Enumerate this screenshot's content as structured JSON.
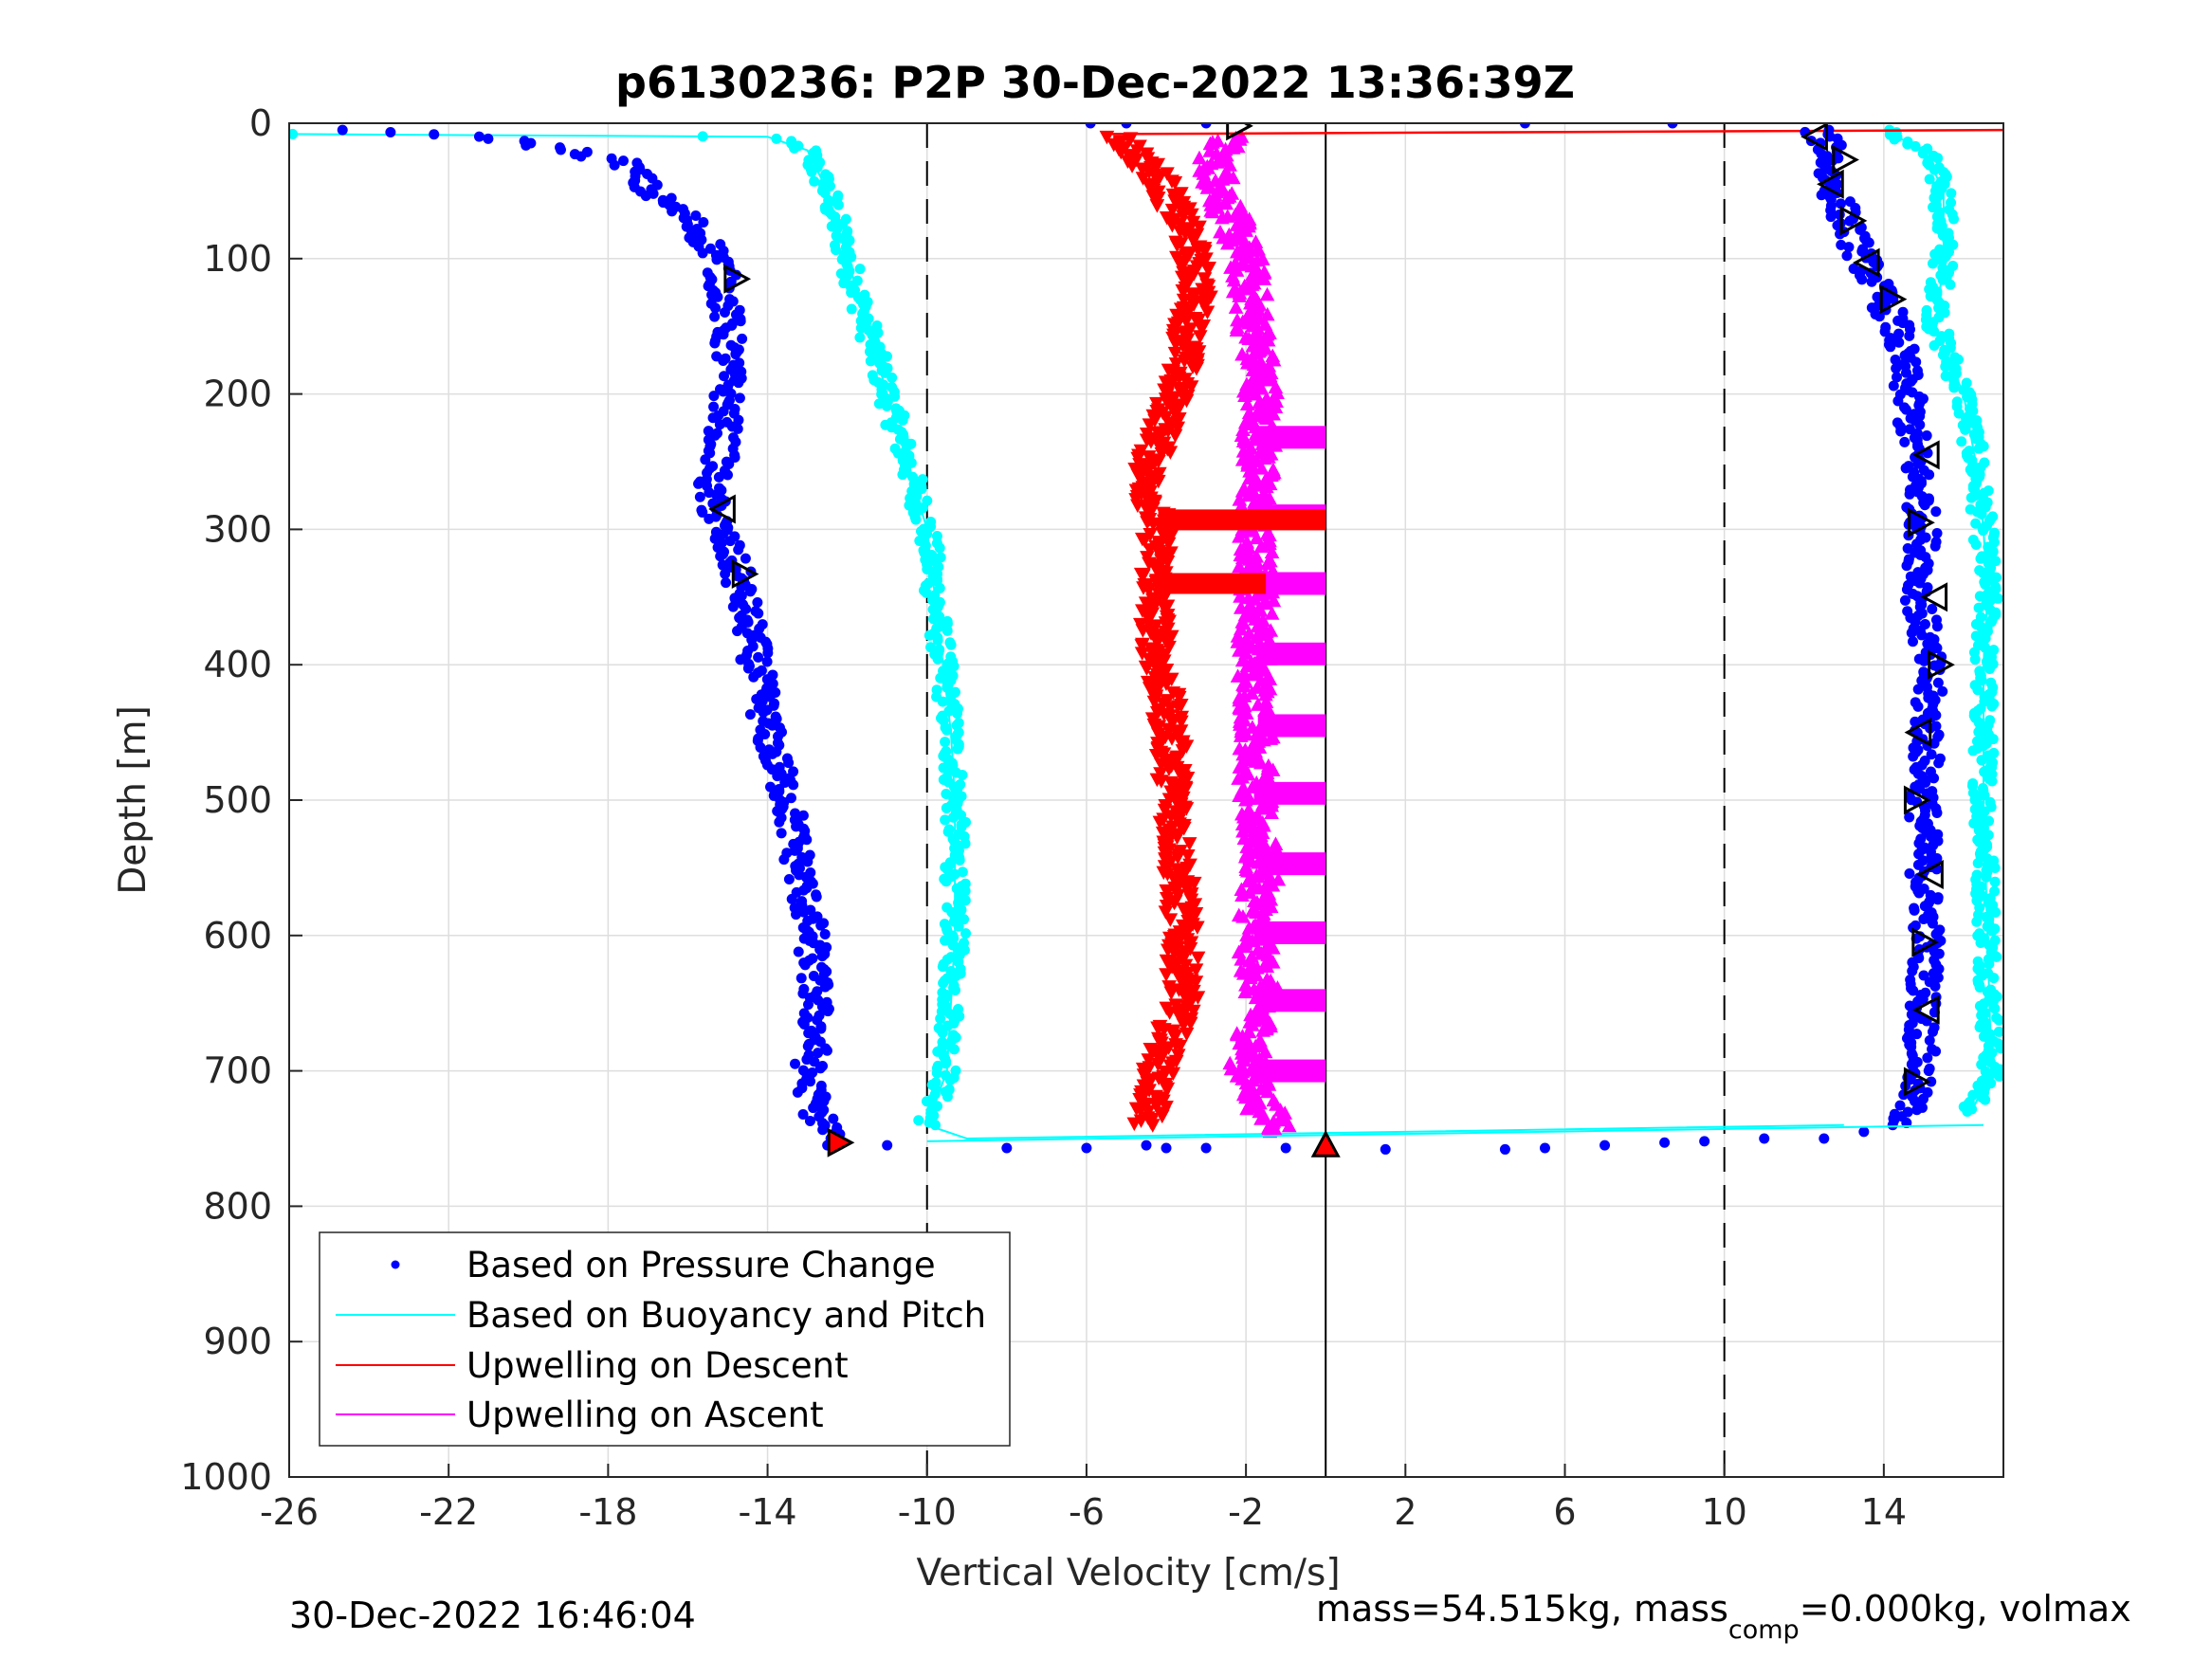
{
  "chart_data": {
    "type": "scatter",
    "title": "p6130236: P2P 30-Dec-2022 13:36:39Z",
    "xlabel": "Vertical Velocity [cm/s]",
    "ylabel": "Depth [m]",
    "xlim": [
      -26,
      17
    ],
    "ylim": [
      0,
      1000
    ],
    "y_reversed": true,
    "grid": true,
    "x_ticks": [
      -26,
      -22,
      -18,
      -14,
      -10,
      -6,
      -2,
      2,
      6,
      10,
      14
    ],
    "x_tick_labels": [
      "-26",
      "-22",
      "-18",
      "-14",
      "-10",
      "-6",
      "-2",
      "2",
      "6",
      "10",
      "14"
    ],
    "y_ticks": [
      0,
      100,
      200,
      300,
      400,
      500,
      600,
      700,
      800,
      900,
      1000
    ],
    "y_tick_labels": [
      "0",
      "100",
      "200",
      "300",
      "400",
      "500",
      "600",
      "700",
      "800",
      "900",
      "1000"
    ],
    "reference_lines": [
      {
        "x": -10,
        "style": "dashed"
      },
      {
        "x": 10,
        "style": "dashed"
      },
      {
        "x": 0,
        "style": "solid"
      }
    ],
    "legend_placement": "bottom-left",
    "legend": [
      {
        "label": "Based on Pressure Change",
        "color": "#0000ff",
        "marker": "dot"
      },
      {
        "label": "Based on Buoyancy and Pitch",
        "color": "#00ffff",
        "marker": "line"
      },
      {
        "label": "Upwelling on Descent",
        "color": "#ff0000",
        "marker": "line"
      },
      {
        "label": "Upwelling on Ascent",
        "color": "#ff00ff",
        "marker": "line"
      }
    ],
    "series": [
      {
        "name": "Based on Pressure Change",
        "color": "#0000ff",
        "marker": "dot",
        "profiles": [
          {
            "x": [
              -25,
              -21,
              -19,
              -17.5,
              -17,
              -16,
              -15.2,
              -15,
              -15,
              -15.2,
              -15.5,
              -15.2,
              -14.8,
              -14.4,
              -14,
              -13.5,
              -13.2,
              -12.9,
              -12.8,
              -12.8,
              -13,
              -12.8,
              -12.3
            ],
            "y": [
              5,
              10,
              20,
              30,
              50,
              70,
              100,
              150,
              200,
              250,
              270,
              300,
              330,
              380,
              450,
              500,
              550,
              600,
              650,
              680,
              700,
              730,
              750
            ]
          },
          {
            "x": [
              12.3,
              12.7,
              12.6,
              12.9,
              13.3,
              13.8,
              14.3,
              14.6,
              14.8,
              15,
              14.9,
              15.1,
              15.1,
              15,
              15,
              15.1,
              15,
              14.9,
              14.8,
              14.6,
              14.5
            ],
            "y": [
              5,
              20,
              40,
              60,
              90,
              120,
              150,
              200,
              250,
              300,
              350,
              400,
              450,
              500,
              550,
              600,
              650,
              700,
              710,
              730,
              740
            ]
          }
        ],
        "scattered_points": {
          "x": [
            -12.5,
            -11,
            -8,
            -6,
            -4.5,
            -4,
            -3,
            -1,
            1.5,
            4.5,
            5.5,
            7,
            8.5,
            9.5,
            11,
            12.5,
            13.5,
            -5.9,
            -5,
            -3,
            5,
            8.7
          ],
          "y": [
            755,
            755,
            757,
            757,
            755,
            757,
            757,
            757,
            758,
            758,
            757,
            755,
            753,
            752,
            750,
            750,
            745,
            0,
            0,
            0,
            0,
            0
          ]
        }
      },
      {
        "name": "Based on Buoyancy and Pitch",
        "color": "#00ffff",
        "marker": "dot+line",
        "profiles": [
          {
            "x": [
              -26,
              -14,
              -13,
              -12.5,
              -12,
              -11.5,
              -11,
              -10.5,
              -10,
              -9.8,
              -9.6,
              -9.4,
              -9.3,
              -9.3,
              -9.5,
              -10,
              -9,
              13
            ],
            "y": [
              8,
              10,
              20,
              50,
              100,
              150,
              200,
              250,
              300,
              350,
              400,
              450,
              500,
              600,
              700,
              740,
              750,
              740
            ]
          },
          {
            "x": [
              14,
              15,
              15.5,
              15.5,
              15.3,
              16,
              16.3,
              16.5,
              16.6,
              16.5,
              16.5,
              16.5,
              16.6,
              16.7,
              16.2
            ],
            "y": [
              5,
              20,
              50,
              100,
              150,
              200,
              250,
              300,
              350,
              400,
              450,
              500,
              600,
              700,
              730
            ]
          }
        ]
      },
      {
        "name": "Upwelling on Descent",
        "color": "#ff0000",
        "marker": "triangle-down",
        "x": [
          -5.2,
          -4.2,
          -3.5,
          -3.2,
          -3.6,
          -4,
          -4.5,
          -4.2,
          -4.3,
          -4.2,
          -3.9,
          -3.8,
          -3.7,
          -3.6,
          -3.6,
          -4.2,
          -4.5
        ],
        "y": [
          10,
          40,
          80,
          120,
          180,
          220,
          260,
          300,
          350,
          400,
          450,
          500,
          550,
          600,
          650,
          700,
          740
        ],
        "bands": [
          {
            "y": 293,
            "x_from": -4.2,
            "x_to": 0
          },
          {
            "y": 340,
            "x_from": -4.2,
            "x_to": -1.5
          }
        ]
      },
      {
        "name": "Upwelling on Ascent",
        "color": "#ff00ff",
        "marker": "triangle-up",
        "x": [
          -2.5,
          -2.8,
          -2.5,
          -2,
          -1.8,
          -1.6,
          -1.7,
          -1.8,
          -1.7,
          -1.8,
          -1.7,
          -1.8,
          -1.6,
          -1.8,
          -1.6,
          -2,
          -1.5,
          -1
        ],
        "y": [
          10,
          30,
          60,
          100,
          150,
          200,
          250,
          300,
          350,
          400,
          450,
          500,
          550,
          600,
          650,
          700,
          730,
          745
        ],
        "bands": [
          {
            "y": 232,
            "x_from": -1.7,
            "x_to": 0
          },
          {
            "y": 290,
            "x_from": -1.8,
            "x_to": 0
          },
          {
            "y": 340,
            "x_from": -1.8,
            "x_to": 0
          },
          {
            "y": 392,
            "x_from": -1.7,
            "x_to": 0
          },
          {
            "y": 445,
            "x_from": -1.7,
            "x_to": 0
          },
          {
            "y": 495,
            "x_from": -1.8,
            "x_to": 0
          },
          {
            "y": 547,
            "x_from": -1.7,
            "x_to": 0
          },
          {
            "y": 598,
            "x_from": -1.8,
            "x_to": 0
          },
          {
            "y": 648,
            "x_from": -1.7,
            "x_to": 0
          },
          {
            "y": 700,
            "x_from": -1.8,
            "x_to": 0
          }
        ]
      }
    ],
    "top_red_line": {
      "x": [
        -5.5,
        17
      ],
      "y": [
        8,
        5
      ]
    },
    "markers": [
      {
        "shape": "triangle-right",
        "x": -2.2,
        "y": 2,
        "fill": "none"
      },
      {
        "shape": "triangle-right",
        "x": -14.8,
        "y": 115,
        "fill": "none"
      },
      {
        "shape": "triangle-left",
        "x": -15.1,
        "y": 285,
        "fill": "none"
      },
      {
        "shape": "triangle-right",
        "x": -14.6,
        "y": 333,
        "fill": "none"
      },
      {
        "shape": "triangle-right",
        "x": -12.2,
        "y": 753,
        "fill": "#ff0000"
      },
      {
        "shape": "triangle-up",
        "x": 0,
        "y": 755,
        "fill": "#ff0000"
      },
      {
        "shape": "triangle-left",
        "x": 12.3,
        "y": 10,
        "fill": "none"
      },
      {
        "shape": "triangle-right",
        "x": 13,
        "y": 27,
        "fill": "none"
      },
      {
        "shape": "triangle-left",
        "x": 12.7,
        "y": 45,
        "fill": "none"
      },
      {
        "shape": "triangle-right",
        "x": 13.2,
        "y": 72,
        "fill": "none"
      },
      {
        "shape": "triangle-left",
        "x": 13.6,
        "y": 103,
        "fill": "none"
      },
      {
        "shape": "triangle-right",
        "x": 14.2,
        "y": 130,
        "fill": "none"
      },
      {
        "shape": "triangle-left",
        "x": 15.1,
        "y": 245,
        "fill": "none"
      },
      {
        "shape": "triangle-right",
        "x": 14.9,
        "y": 295,
        "fill": "none"
      },
      {
        "shape": "triangle-left",
        "x": 15.3,
        "y": 350,
        "fill": "none"
      },
      {
        "shape": "triangle-right",
        "x": 15.4,
        "y": 400,
        "fill": "none"
      },
      {
        "shape": "triangle-left",
        "x": 14.9,
        "y": 450,
        "fill": "none"
      },
      {
        "shape": "triangle-right",
        "x": 14.8,
        "y": 500,
        "fill": "none"
      },
      {
        "shape": "triangle-left",
        "x": 15.2,
        "y": 555,
        "fill": "none"
      },
      {
        "shape": "triangle-right",
        "x": 15.0,
        "y": 605,
        "fill": "none"
      },
      {
        "shape": "triangle-left",
        "x": 15.1,
        "y": 655,
        "fill": "none"
      },
      {
        "shape": "triangle-right",
        "x": 14.8,
        "y": 708,
        "fill": "none"
      }
    ]
  },
  "footer": {
    "timestamp": "30-Dec-2022 16:46:04",
    "params_prefix": "mass=54.515kg, mass",
    "params_sub": "comp",
    "params_suffix": "=0.000kg, volmax"
  }
}
